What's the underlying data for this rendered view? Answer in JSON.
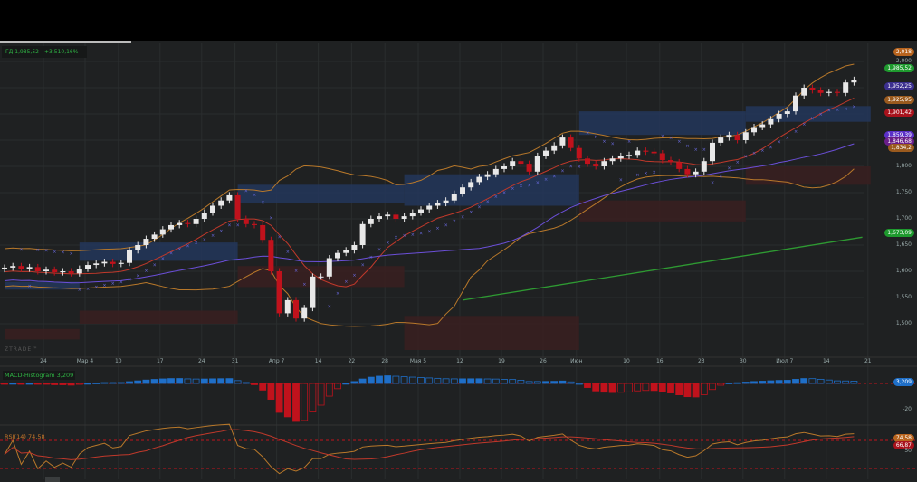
{
  "header": {
    "symbol_value": "ГД 1,985,52",
    "change": "+3,510,16%"
  },
  "watermark": "ZTRADE™",
  "macd_label": "MACD-Histogram",
  "macd_value": "3,209",
  "rsi_label": "RSI(14)",
  "rsi_value": "74,58",
  "colors": {
    "up": "#e8e8e8",
    "down": "#c0121c",
    "bg": "#1f2122",
    "blue_zone": "#23365a",
    "red_zone": "#3a1f20",
    "macd_up": "#1f6fc8",
    "macd_down": "#c0121c",
    "long_ma": "#2e9a32",
    "bands": "#b8782a",
    "ma_red": "#c0392b",
    "ma_purple": "#6b4fd8",
    "sar": "#6a6ae0"
  },
  "price_tags": [
    {
      "label": "2,018",
      "color": "#b8641e",
      "price": 2018
    },
    {
      "label": "1,985,52",
      "color": "#1e9a2e",
      "price": 1985.52
    },
    {
      "label": "1,952,25",
      "color": "#3b2f8f",
      "price": 1952.25
    },
    {
      "label": "1,925,95",
      "color": "#9a5a1e",
      "price": 1925.95
    },
    {
      "label": "1,901,42",
      "color": "#a8121c",
      "price": 1901.42
    },
    {
      "label": "1,859,39",
      "color": "#5a2fc8",
      "price": 1859.39
    },
    {
      "label": "1,846,68",
      "color": "#6a1e8a",
      "price": 1846.68
    },
    {
      "label": "1,834,2",
      "color": "#9a5a1e",
      "price": 1834.2
    },
    {
      "label": "1,673,09",
      "color": "#1e9a2e",
      "price": 1673.09
    }
  ],
  "macd_tag": {
    "label": "3,209",
    "color": "#1f6fc8"
  },
  "rsi_tags": [
    {
      "label": "74,58",
      "color": "#b8641e"
    },
    {
      "label": "66,87",
      "color": "#a8121c"
    }
  ],
  "chart_data": {
    "type": "candlestick",
    "y_ticks": [
      1500,
      1550,
      1600,
      1650,
      1700,
      1750,
      1800,
      2000
    ],
    "y_tick_labels": [
      "1,500",
      "1,550",
      "1,600",
      "1,650",
      "1,700",
      "1,750",
      "1,800",
      "2,000"
    ],
    "x_tick_labels": [
      "24",
      "Мар 4",
      "10",
      "17",
      "24",
      "31",
      "Апр 7",
      "14",
      "22",
      "28",
      "Мая 5",
      "12",
      "19",
      "26",
      "Июн",
      "10",
      "16",
      "23",
      "30",
      "Июл 7",
      "14",
      "21"
    ],
    "x_tick_index": [
      5,
      10,
      14,
      19,
      24,
      28,
      33,
      38,
      42,
      46,
      50,
      55,
      60,
      65,
      69,
      75,
      79,
      84,
      89,
      94,
      99,
      104
    ],
    "closes": [
      1607,
      1610,
      1605,
      1608,
      1600,
      1603,
      1598,
      1600,
      1596,
      1605,
      1612,
      1615,
      1618,
      1614,
      1616,
      1640,
      1650,
      1662,
      1670,
      1680,
      1688,
      1692,
      1690,
      1700,
      1712,
      1725,
      1735,
      1745,
      1700,
      1690,
      1688,
      1660,
      1600,
      1520,
      1545,
      1510,
      1530,
      1590,
      1590,
      1625,
      1635,
      1640,
      1650,
      1690,
      1700,
      1705,
      1708,
      1700,
      1705,
      1712,
      1718,
      1725,
      1730,
      1735,
      1748,
      1760,
      1770,
      1780,
      1785,
      1795,
      1800,
      1810,
      1805,
      1790,
      1820,
      1830,
      1840,
      1855,
      1835,
      1815,
      1805,
      1800,
      1810,
      1815,
      1820,
      1822,
      1830,
      1828,
      1825,
      1812,
      1808,
      1795,
      1785,
      1790,
      1810,
      1845,
      1855,
      1860,
      1850,
      1865,
      1875,
      1880,
      1890,
      1900,
      1905,
      1935,
      1950,
      1945,
      1940,
      1942,
      1940,
      1960,
      1965
    ],
    "long_ma": {
      "start_index": 55,
      "start_value": 1545,
      "end_index": 103,
      "end_value": 1665
    },
    "zones": [
      {
        "kind": "demand",
        "from": 0,
        "to": 9,
        "low": 1565,
        "high": 1580
      },
      {
        "kind": "demand",
        "from": 9,
        "to": 28,
        "low": 1620,
        "high": 1655
      },
      {
        "kind": "demand",
        "from": 28,
        "to": 48,
        "low": 1730,
        "high": 1765
      },
      {
        "kind": "demand",
        "from": 48,
        "to": 69,
        "low": 1725,
        "high": 1785
      },
      {
        "kind": "demand",
        "from": 69,
        "to": 89,
        "low": 1860,
        "high": 1905
      },
      {
        "kind": "demand",
        "from": 89,
        "to": 104,
        "low": 1885,
        "high": 1915
      },
      {
        "kind": "supply",
        "from": 0,
        "to": 9,
        "low": 1470,
        "high": 1490
      },
      {
        "kind": "supply",
        "from": 9,
        "to": 28,
        "low": 1500,
        "high": 1525
      },
      {
        "kind": "supply",
        "from": 28,
        "to": 48,
        "low": 1570,
        "high": 1610
      },
      {
        "kind": "supply",
        "from": 48,
        "to": 69,
        "low": 1450,
        "high": 1515
      },
      {
        "kind": "supply",
        "from": 69,
        "to": 89,
        "low": 1695,
        "high": 1735
      },
      {
        "kind": "supply",
        "from": 89,
        "to": 104,
        "low": 1765,
        "high": 1800
      }
    ],
    "macd_axis_labels": [
      "-20"
    ],
    "rsi_axis_labels": [
      "50"
    ],
    "rsi_levels": [
      70,
      30
    ]
  }
}
